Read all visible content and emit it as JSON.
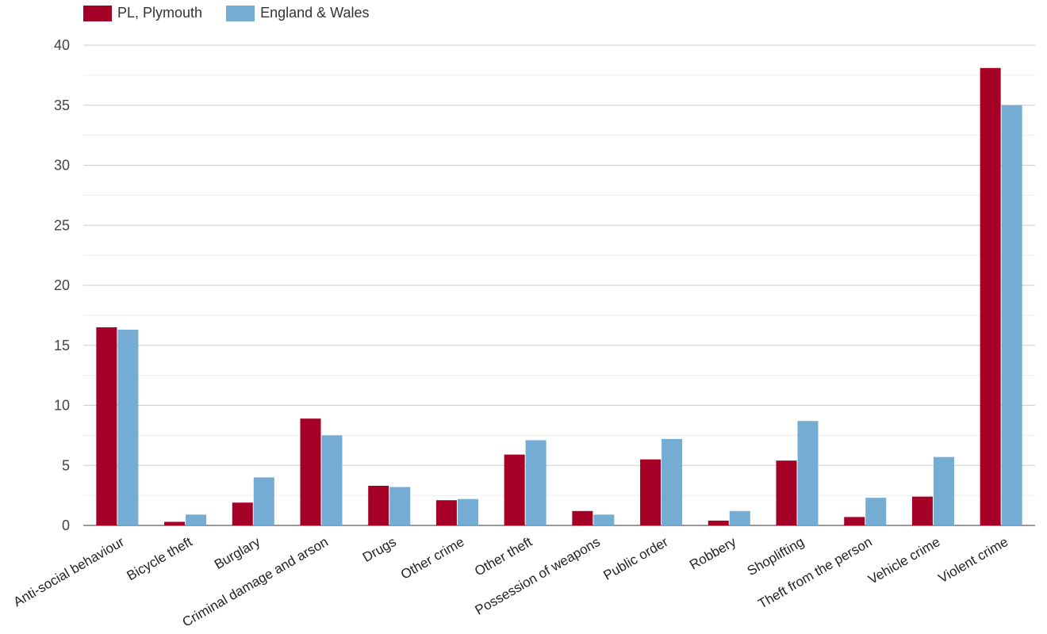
{
  "legend": {
    "series0": "PL, Plymouth",
    "series1": "England & Wales"
  },
  "chart_data": {
    "type": "bar",
    "categories": [
      "Anti-social behaviour",
      "Bicycle theft",
      "Burglary",
      "Criminal damage and arson",
      "Drugs",
      "Other crime",
      "Other theft",
      "Possession of weapons",
      "Public order",
      "Robbery",
      "Shoplifting",
      "Theft from the person",
      "Vehicle crime",
      "Violent crime"
    ],
    "series": [
      {
        "name": "PL, Plymouth",
        "color": "#a50026",
        "values": [
          16.5,
          0.3,
          1.9,
          8.9,
          3.3,
          2.1,
          5.9,
          1.2,
          5.5,
          0.4,
          5.4,
          0.7,
          2.4,
          38.1
        ]
      },
      {
        "name": "England & Wales",
        "color": "#74acd3",
        "values": [
          16.3,
          0.9,
          4.0,
          7.5,
          3.2,
          2.2,
          7.1,
          0.9,
          7.2,
          1.2,
          8.7,
          2.3,
          5.7,
          35.0
        ]
      }
    ],
    "ylim": [
      0,
      40
    ],
    "yticks": [
      0,
      5,
      10,
      15,
      20,
      25,
      30,
      35,
      40
    ],
    "minor_grid": true,
    "legend_position": "top-left"
  }
}
